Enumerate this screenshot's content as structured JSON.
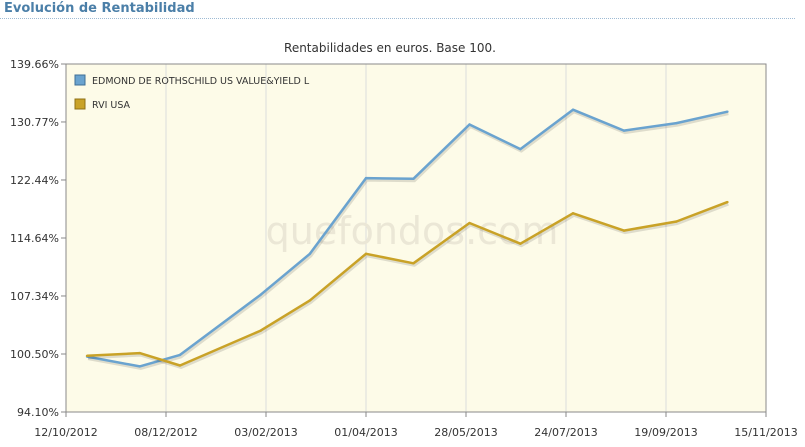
{
  "header": {
    "title": "Evolución de Rentabilidad"
  },
  "chart_data": {
    "type": "line",
    "title": "Rentabilidades en euros. Base 100.",
    "xlabel": "",
    "ylabel": "",
    "x_tick_labels": [
      "12/10/2012",
      "08/12/2012",
      "03/02/2013",
      "01/04/2013",
      "28/05/2013",
      "24/07/2013",
      "19/09/2013",
      "15/11/2013"
    ],
    "y_tick_labels": [
      "139.66%",
      "130.77%",
      "122.44%",
      "114.64%",
      "107.34%",
      "100.50%",
      "94.10%"
    ],
    "x": [
      "2012-10-24",
      "2012-11-23",
      "2012-12-16",
      "2013-01-31",
      "2013-02-28",
      "2013-04-01",
      "2013-04-28",
      "2013-05-30",
      "2013-06-28",
      "2013-07-28",
      "2013-08-26",
      "2013-09-25",
      "2013-10-24"
    ],
    "series": [
      {
        "name": "EDMOND DE ROTHSCHILD US VALUE&YIELD L",
        "color": "#6aa3cf",
        "values": [
          100.2,
          99.1,
          100.4,
          107.5,
          112.6,
          122.7,
          122.6,
          130.4,
          126.8,
          132.6,
          129.5,
          130.6,
          132.3
        ]
      },
      {
        "name": "RVI USA",
        "color": "#c9a227",
        "values": [
          100.3,
          100.6,
          99.2,
          103.2,
          106.8,
          112.6,
          111.4,
          116.6,
          113.9,
          117.9,
          115.6,
          116.8,
          119.4
        ]
      }
    ],
    "legend_position": "top-left",
    "grid": "vertical",
    "watermark": "quefondos.com",
    "colors": {
      "plot_background": "#fdfbe8",
      "axis": "#888888"
    }
  }
}
